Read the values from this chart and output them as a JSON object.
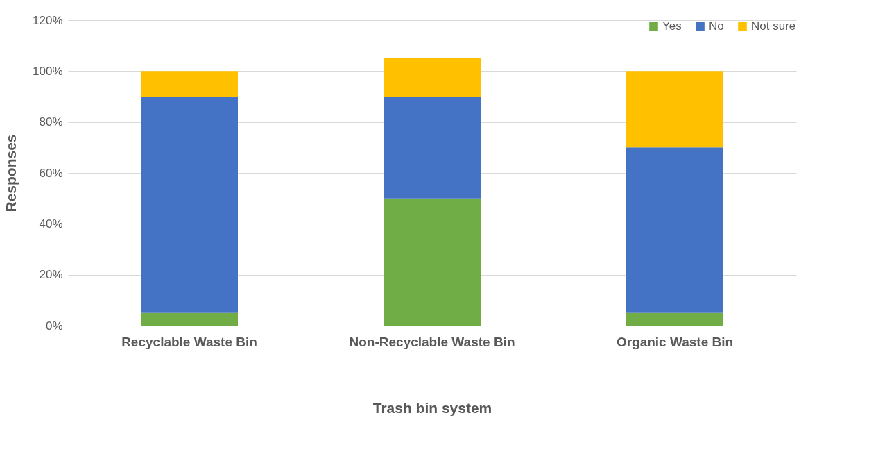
{
  "chart_data": {
    "type": "bar",
    "stacked": true,
    "xlabel": "Trash bin system",
    "ylabel": "Responses",
    "categories": [
      "Recyclable Waste Bin",
      "Non-Recyclable Waste Bin",
      "Organic Waste Bin"
    ],
    "series": [
      {
        "name": "Yes",
        "color": "#70ad47",
        "values": [
          5,
          50,
          5
        ]
      },
      {
        "name": "No",
        "color": "#4472c4",
        "values": [
          85,
          40,
          65
        ]
      },
      {
        "name": "Not sure",
        "color": "#ffc000",
        "values": [
          10,
          15,
          30
        ]
      }
    ],
    "ylim": [
      0,
      120
    ],
    "yticks": [
      {
        "value": 0,
        "label": "0%"
      },
      {
        "value": 20,
        "label": "20%"
      },
      {
        "value": 40,
        "label": "40%"
      },
      {
        "value": 60,
        "label": "60%"
      },
      {
        "value": 80,
        "label": "80%"
      },
      {
        "value": 100,
        "label": "100%"
      },
      {
        "value": 120,
        "label": "120%"
      }
    ],
    "grid": "y",
    "legend": "top right"
  }
}
